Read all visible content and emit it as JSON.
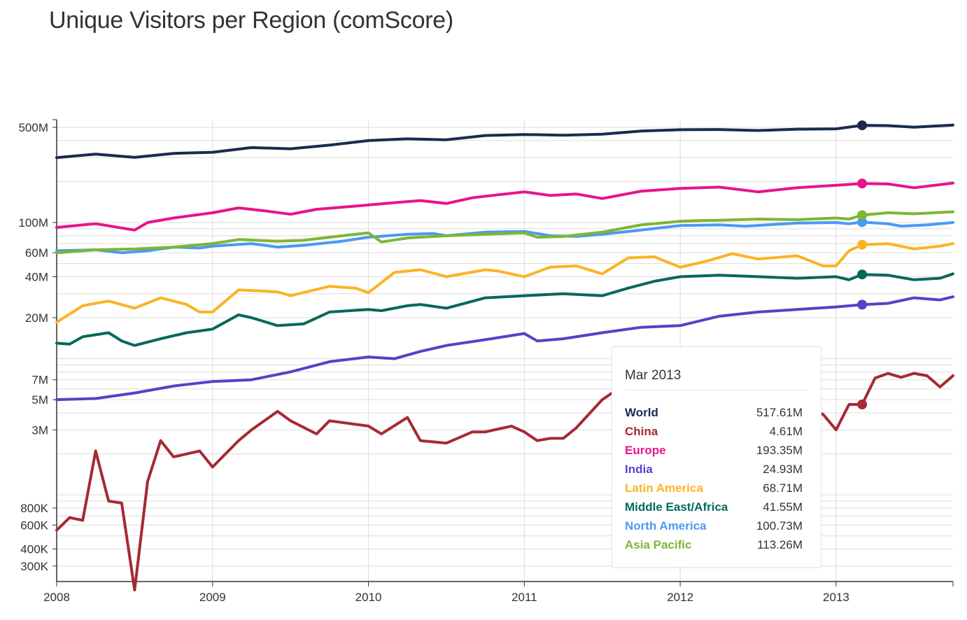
{
  "title": "Unique Visitors per Region (comScore)",
  "chart_data": {
    "type": "line",
    "title": "Unique Visitors per Region (comScore)",
    "y_scale": "log",
    "ylim": [
      180000,
      600000000
    ],
    "xlim": [
      2008.0,
      2013.75
    ],
    "y_ticks": [
      {
        "label": "500M",
        "value": 500000000
      },
      {
        "label": "100M",
        "value": 100000000
      },
      {
        "label": "60M",
        "value": 60000000
      },
      {
        "label": "40M",
        "value": 40000000
      },
      {
        "label": "20M",
        "value": 20000000
      },
      {
        "label": "7M",
        "value": 7000000
      },
      {
        "label": "5M",
        "value": 5000000
      },
      {
        "label": "3M",
        "value": 3000000
      },
      {
        "label": "800K",
        "value": 800000
      },
      {
        "label": "600K",
        "value": 600000
      },
      {
        "label": "400K",
        "value": 400000
      },
      {
        "label": "300K",
        "value": 300000
      }
    ],
    "x_ticks": [
      {
        "label": "2008",
        "value": 2008
      },
      {
        "label": "2009",
        "value": 2009
      },
      {
        "label": "2010",
        "value": 2010
      },
      {
        "label": "2011",
        "value": 2011
      },
      {
        "label": "2012",
        "value": 2012
      },
      {
        "label": "2013",
        "value": 2013
      }
    ],
    "grid": true,
    "legend": "tooltip",
    "highlight_x": 2013.167,
    "series": [
      {
        "name": "World",
        "color": "#1b2a50",
        "unit": "M",
        "points": [
          [
            2008.0,
            300
          ],
          [
            2008.25,
            318
          ],
          [
            2008.5,
            301
          ],
          [
            2008.75,
            322
          ],
          [
            2009.0,
            328
          ],
          [
            2009.25,
            355
          ],
          [
            2009.5,
            348
          ],
          [
            2009.75,
            370
          ],
          [
            2010.0,
            400
          ],
          [
            2010.25,
            412
          ],
          [
            2010.5,
            405
          ],
          [
            2010.75,
            436
          ],
          [
            2011.0,
            443
          ],
          [
            2011.25,
            438
          ],
          [
            2011.5,
            445
          ],
          [
            2011.75,
            470
          ],
          [
            2012.0,
            480
          ],
          [
            2012.25,
            482
          ],
          [
            2012.5,
            474
          ],
          [
            2012.75,
            485
          ],
          [
            2013.0,
            488
          ],
          [
            2013.167,
            517.61
          ],
          [
            2013.33,
            515
          ],
          [
            2013.5,
            502
          ],
          [
            2013.75,
            520
          ]
        ]
      },
      {
        "name": "China",
        "color": "#a52a34",
        "unit": "M",
        "points": [
          [
            2008.0,
            0.55
          ],
          [
            2008.083,
            0.68
          ],
          [
            2008.167,
            0.65
          ],
          [
            2008.25,
            2.1
          ],
          [
            2008.333,
            0.9
          ],
          [
            2008.417,
            0.87
          ],
          [
            2008.5,
            0.2
          ],
          [
            2008.583,
            1.25
          ],
          [
            2008.667,
            2.5
          ],
          [
            2008.75,
            1.9
          ],
          [
            2008.917,
            2.1
          ],
          [
            2009.0,
            1.6
          ],
          [
            2009.167,
            2.5
          ],
          [
            2009.25,
            3.0
          ],
          [
            2009.417,
            4.1
          ],
          [
            2009.5,
            3.5
          ],
          [
            2009.667,
            2.8
          ],
          [
            2009.75,
            3.5
          ],
          [
            2010.0,
            3.2
          ],
          [
            2010.083,
            2.8
          ],
          [
            2010.25,
            3.7
          ],
          [
            2010.333,
            2.5
          ],
          [
            2010.5,
            2.4
          ],
          [
            2010.667,
            2.9
          ],
          [
            2010.75,
            2.9
          ],
          [
            2010.917,
            3.2
          ],
          [
            2011.0,
            2.9
          ],
          [
            2011.083,
            2.5
          ],
          [
            2011.167,
            2.6
          ],
          [
            2011.25,
            2.6
          ],
          [
            2011.333,
            3.1
          ],
          [
            2011.5,
            5.0
          ],
          [
            2011.583,
            5.8
          ],
          [
            2011.667,
            6.0
          ],
          [
            2012.833,
            4.2
          ],
          [
            2012.917,
            3.9
          ],
          [
            2013.0,
            3.0
          ],
          [
            2013.083,
            4.61
          ],
          [
            2013.167,
            4.61
          ],
          [
            2013.25,
            7.2
          ],
          [
            2013.333,
            7.8
          ],
          [
            2013.417,
            7.3
          ],
          [
            2013.5,
            7.8
          ],
          [
            2013.583,
            7.5
          ],
          [
            2013.667,
            6.2
          ],
          [
            2013.75,
            7.5
          ]
        ]
      },
      {
        "name": "Europe",
        "color": "#e6148c",
        "unit": "M",
        "points": [
          [
            2008.0,
            92
          ],
          [
            2008.25,
            98
          ],
          [
            2008.5,
            88
          ],
          [
            2008.583,
            100
          ],
          [
            2008.75,
            108
          ],
          [
            2009.0,
            118
          ],
          [
            2009.167,
            128
          ],
          [
            2009.333,
            122
          ],
          [
            2009.5,
            115
          ],
          [
            2009.667,
            125
          ],
          [
            2009.917,
            132
          ],
          [
            2010.167,
            140
          ],
          [
            2010.333,
            145
          ],
          [
            2010.5,
            138
          ],
          [
            2010.667,
            152
          ],
          [
            2010.833,
            160
          ],
          [
            2011.0,
            168
          ],
          [
            2011.167,
            158
          ],
          [
            2011.333,
            162
          ],
          [
            2011.5,
            150
          ],
          [
            2011.75,
            170
          ],
          [
            2012.0,
            178
          ],
          [
            2012.25,
            182
          ],
          [
            2012.5,
            168
          ],
          [
            2012.75,
            180
          ],
          [
            2013.0,
            188
          ],
          [
            2013.167,
            193.35
          ],
          [
            2013.333,
            192
          ],
          [
            2013.5,
            180
          ],
          [
            2013.75,
            195
          ]
        ]
      },
      {
        "name": "India",
        "color": "#5b3fc8",
        "unit": "M",
        "points": [
          [
            2008.0,
            5.0
          ],
          [
            2008.25,
            5.1
          ],
          [
            2008.5,
            5.6
          ],
          [
            2008.75,
            6.3
          ],
          [
            2009.0,
            6.8
          ],
          [
            2009.25,
            7.0
          ],
          [
            2009.5,
            8.0
          ],
          [
            2009.75,
            9.5
          ],
          [
            2010.0,
            10.3
          ],
          [
            2010.167,
            10.0
          ],
          [
            2010.333,
            11.3
          ],
          [
            2010.5,
            12.5
          ],
          [
            2010.75,
            13.8
          ],
          [
            2011.0,
            15.3
          ],
          [
            2011.083,
            13.5
          ],
          [
            2011.25,
            14.0
          ],
          [
            2011.5,
            15.5
          ],
          [
            2011.75,
            17.0
          ],
          [
            2012.0,
            17.5
          ],
          [
            2012.25,
            20.5
          ],
          [
            2012.5,
            22.0
          ],
          [
            2012.75,
            23.0
          ],
          [
            2013.0,
            24.0
          ],
          [
            2013.167,
            24.93
          ],
          [
            2013.333,
            25.5
          ],
          [
            2013.5,
            28.0
          ],
          [
            2013.667,
            27.0
          ],
          [
            2013.75,
            28.5
          ]
        ]
      },
      {
        "name": "Latin America",
        "color": "#fbb325",
        "unit": "M",
        "points": [
          [
            2008.0,
            18.5
          ],
          [
            2008.167,
            24.5
          ],
          [
            2008.333,
            26.5
          ],
          [
            2008.5,
            23.5
          ],
          [
            2008.667,
            28.0
          ],
          [
            2008.833,
            25.0
          ],
          [
            2008.917,
            22.0
          ],
          [
            2009.0,
            22.0
          ],
          [
            2009.167,
            32.0
          ],
          [
            2009.417,
            31.0
          ],
          [
            2009.5,
            29.0
          ],
          [
            2009.75,
            34.0
          ],
          [
            2009.917,
            33.0
          ],
          [
            2010.0,
            30.5
          ],
          [
            2010.167,
            43.0
          ],
          [
            2010.333,
            45.0
          ],
          [
            2010.5,
            40.0
          ],
          [
            2010.75,
            45.0
          ],
          [
            2010.833,
            44.0
          ],
          [
            2011.0,
            40.0
          ],
          [
            2011.167,
            47.0
          ],
          [
            2011.333,
            48.0
          ],
          [
            2011.5,
            42.0
          ],
          [
            2011.667,
            55.0
          ],
          [
            2011.833,
            56.0
          ],
          [
            2012.0,
            47.0
          ],
          [
            2012.167,
            52.0
          ],
          [
            2012.333,
            59.0
          ],
          [
            2012.5,
            54.0
          ],
          [
            2012.75,
            57.0
          ],
          [
            2012.917,
            48.0
          ],
          [
            2013.0,
            48.0
          ],
          [
            2013.083,
            62.0
          ],
          [
            2013.167,
            68.71
          ],
          [
            2013.333,
            70.0
          ],
          [
            2013.5,
            64.0
          ],
          [
            2013.667,
            67.0
          ],
          [
            2013.75,
            70.0
          ]
        ]
      },
      {
        "name": "Middle East/Africa",
        "color": "#06695a",
        "unit": "M",
        "points": [
          [
            2008.0,
            13.0
          ],
          [
            2008.083,
            12.8
          ],
          [
            2008.167,
            14.5
          ],
          [
            2008.333,
            15.5
          ],
          [
            2008.417,
            13.5
          ],
          [
            2008.5,
            12.5
          ],
          [
            2008.667,
            14.0
          ],
          [
            2008.833,
            15.5
          ],
          [
            2009.0,
            16.5
          ],
          [
            2009.167,
            21.0
          ],
          [
            2009.25,
            20.0
          ],
          [
            2009.417,
            17.5
          ],
          [
            2009.583,
            18.0
          ],
          [
            2009.75,
            22.0
          ],
          [
            2010.0,
            23.0
          ],
          [
            2010.083,
            22.5
          ],
          [
            2010.25,
            24.5
          ],
          [
            2010.333,
            25.0
          ],
          [
            2010.5,
            23.5
          ],
          [
            2010.75,
            28.0
          ],
          [
            2011.0,
            29.0
          ],
          [
            2011.25,
            30.0
          ],
          [
            2011.5,
            29.0
          ],
          [
            2011.667,
            33.0
          ],
          [
            2011.833,
            37.0
          ],
          [
            2012.0,
            40.0
          ],
          [
            2012.25,
            41.0
          ],
          [
            2012.5,
            40.0
          ],
          [
            2012.75,
            39.0
          ],
          [
            2013.0,
            40.0
          ],
          [
            2013.083,
            38.0
          ],
          [
            2013.167,
            41.55
          ],
          [
            2013.333,
            41.0
          ],
          [
            2013.5,
            38.0
          ],
          [
            2013.667,
            39.0
          ],
          [
            2013.75,
            42.0
          ]
        ]
      },
      {
        "name": "North America",
        "color": "#4a9af2",
        "unit": "M",
        "points": [
          [
            2008.0,
            62
          ],
          [
            2008.25,
            63
          ],
          [
            2008.417,
            60
          ],
          [
            2008.583,
            62
          ],
          [
            2008.75,
            66
          ],
          [
            2008.917,
            65
          ],
          [
            2009.0,
            67
          ],
          [
            2009.25,
            70
          ],
          [
            2009.417,
            66
          ],
          [
            2009.583,
            68
          ],
          [
            2009.833,
            73
          ],
          [
            2010.0,
            78
          ],
          [
            2010.25,
            82
          ],
          [
            2010.417,
            83
          ],
          [
            2010.5,
            80
          ],
          [
            2010.75,
            85
          ],
          [
            2011.0,
            86
          ],
          [
            2011.167,
            80
          ],
          [
            2011.333,
            79
          ],
          [
            2011.5,
            82
          ],
          [
            2011.75,
            88
          ],
          [
            2012.0,
            95
          ],
          [
            2012.25,
            96
          ],
          [
            2012.417,
            94
          ],
          [
            2012.75,
            99
          ],
          [
            2013.0,
            100
          ],
          [
            2013.083,
            98
          ],
          [
            2013.167,
            100.73
          ],
          [
            2013.333,
            98
          ],
          [
            2013.417,
            94
          ],
          [
            2013.583,
            96
          ],
          [
            2013.75,
            100
          ]
        ]
      },
      {
        "name": "Asia Pacific",
        "color": "#7db636",
        "unit": "M",
        "points": [
          [
            2008.0,
            60
          ],
          [
            2008.25,
            63
          ],
          [
            2008.5,
            64
          ],
          [
            2008.75,
            66
          ],
          [
            2009.0,
            70
          ],
          [
            2009.167,
            75
          ],
          [
            2009.417,
            73
          ],
          [
            2009.583,
            74
          ],
          [
            2009.833,
            80
          ],
          [
            2010.0,
            84
          ],
          [
            2010.083,
            72
          ],
          [
            2010.25,
            77
          ],
          [
            2010.5,
            80
          ],
          [
            2010.75,
            82
          ],
          [
            2011.0,
            84
          ],
          [
            2011.083,
            78
          ],
          [
            2011.25,
            79
          ],
          [
            2011.5,
            85
          ],
          [
            2011.75,
            96
          ],
          [
            2012.0,
            102
          ],
          [
            2012.083,
            103
          ],
          [
            2012.25,
            104
          ],
          [
            2012.5,
            106
          ],
          [
            2012.75,
            105
          ],
          [
            2013.0,
            108
          ],
          [
            2013.083,
            106
          ],
          [
            2013.167,
            113.26
          ],
          [
            2013.333,
            118
          ],
          [
            2013.5,
            116
          ],
          [
            2013.75,
            120
          ]
        ]
      }
    ]
  },
  "tooltip": {
    "title": "Mar 2013",
    "rows": [
      {
        "name": "World",
        "value": "517.61M",
        "color": "#1b2a50"
      },
      {
        "name": "China",
        "value": "4.61M",
        "color": "#a52a34"
      },
      {
        "name": "Europe",
        "value": "193.35M",
        "color": "#e6148c"
      },
      {
        "name": "India",
        "value": "24.93M",
        "color": "#5b3fc8"
      },
      {
        "name": "Latin America",
        "value": "68.71M",
        "color": "#fbb325"
      },
      {
        "name": "Middle East/Africa",
        "value": "41.55M",
        "color": "#06695a"
      },
      {
        "name": "North America",
        "value": "100.73M",
        "color": "#4a9af2"
      },
      {
        "name": "Asia Pacific",
        "value": "113.26M",
        "color": "#7db636"
      }
    ]
  }
}
